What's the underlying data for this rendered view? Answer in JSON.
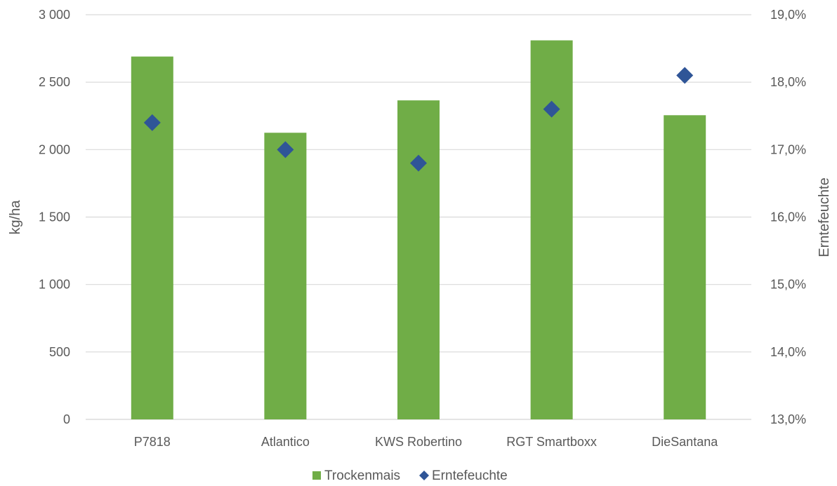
{
  "chart_data": {
    "type": "bar",
    "categories": [
      "P7818",
      "Atlantico",
      "KWS Robertino",
      "RGT Smartboxx",
      "DieSantana"
    ],
    "series": [
      {
        "name": "Trockenmais",
        "kind": "bar",
        "axis": "left",
        "color": "#70AD47",
        "values": [
          2690,
          2125,
          2365,
          2810,
          2255
        ]
      },
      {
        "name": "Erntefeuchte",
        "kind": "scatter",
        "axis": "right",
        "color": "#2F5597",
        "marker": "diamond",
        "values": [
          17.4,
          17.0,
          16.8,
          17.6,
          18.1
        ]
      }
    ],
    "ylabel": "kg/ha",
    "ylim": [
      0,
      3000
    ],
    "yticks": [
      0,
      500,
      1000,
      1500,
      2000,
      2500,
      3000
    ],
    "ytick_labels": [
      "0",
      "500",
      "1 000",
      "1 500",
      "2 000",
      "2 500",
      "3 000"
    ],
    "y2label": "Erntefeuchte",
    "y2lim": [
      13.0,
      19.0
    ],
    "y2ticks": [
      13,
      14,
      15,
      16,
      17,
      18,
      19
    ],
    "y2tick_labels": [
      "13,0%",
      "14,0%",
      "15,0%",
      "16,0%",
      "17,0%",
      "18,0%",
      "19,0%"
    ],
    "grid": true,
    "grid_color": "#D9D9D9",
    "legend": {
      "position": "bottom",
      "entries": [
        "Trockenmais",
        "Erntefeuchte"
      ]
    }
  }
}
